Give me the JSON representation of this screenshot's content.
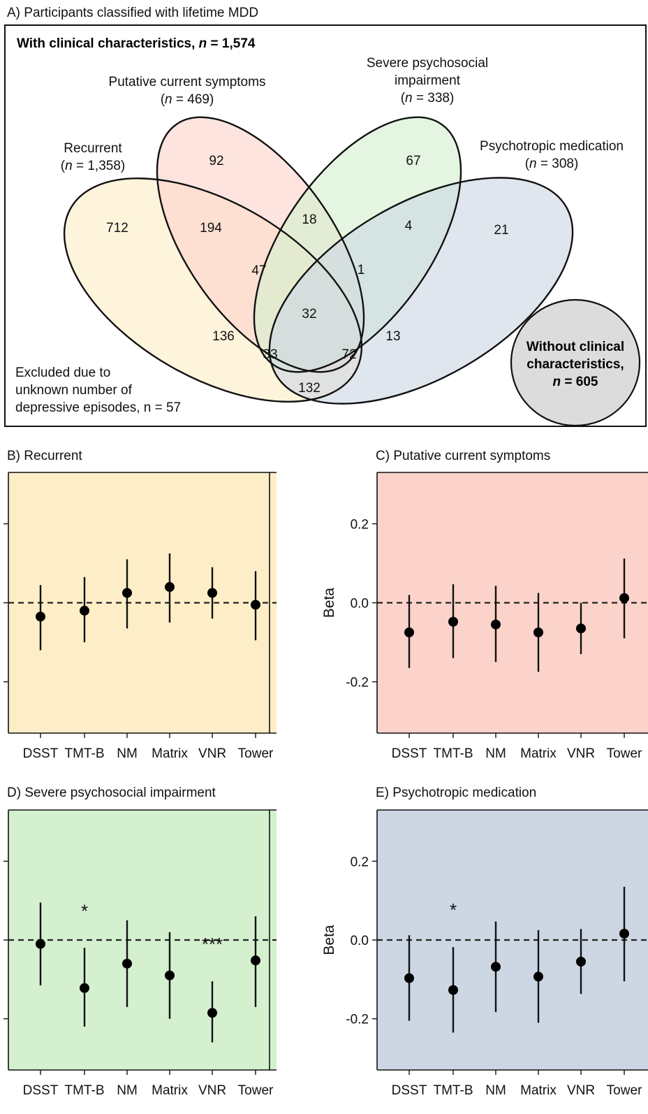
{
  "panel_a": {
    "title": "A)  Participants classified with lifetime MDD",
    "header_prefix": "With clinical characteristics, ",
    "header_n": "n",
    "header_suffix": " = 1,574",
    "sets": [
      {
        "line1": "Recurrent",
        "n": "1,358",
        "color": "#fdeec7"
      },
      {
        "line1": "Putative current symptoms",
        "n": "469",
        "color": "#fbd3cb"
      },
      {
        "line0": "Severe psychosocial",
        "line1": "impairment",
        "n": "338",
        "color": "#d4f0cf"
      },
      {
        "line1": "Psychotropic medication",
        "n": "308",
        "color": "#cdd7e3"
      }
    ],
    "region_counts": [
      "712",
      "92",
      "67",
      "21",
      "194",
      "18",
      "4",
      "47",
      "1",
      "32",
      "136",
      "13",
      "33",
      "72",
      "132"
    ],
    "excluded_text": [
      "Excluded due to",
      "unknown number of",
      "depressive episodes, n = 57"
    ],
    "without": {
      "line1": "Without clinical",
      "line2": "characteristics,",
      "n_prefix": "n",
      "n_value": " = 605"
    }
  },
  "chart_data": [
    {
      "type": "scatter",
      "title": "B) Recurrent",
      "categories": [
        "DSST",
        "TMT-B",
        "NM",
        "Matrix",
        "VNR",
        "Tower"
      ],
      "values": [
        -0.035,
        -0.02,
        0.025,
        0.04,
        0.025,
        -0.005
      ],
      "ci_low": [
        -0.12,
        -0.1,
        -0.065,
        -0.05,
        -0.04,
        -0.095
      ],
      "ci_high": [
        0.045,
        0.065,
        0.11,
        0.125,
        0.09,
        0.08
      ],
      "significance": [
        "",
        "",
        "",
        "",
        "",
        ""
      ],
      "ylabel": "",
      "yticks": [],
      "ylim": [
        -0.33,
        0.33
      ],
      "reference_line": 0,
      "background": "#fdeec7"
    },
    {
      "type": "scatter",
      "title": "C) Putative current symptoms",
      "categories": [
        "DSST",
        "TMT-B",
        "NM",
        "Matrix",
        "VNR",
        "Tower"
      ],
      "values": [
        -0.075,
        -0.048,
        -0.055,
        -0.075,
        -0.065,
        0.012
      ],
      "ci_low": [
        -0.165,
        -0.14,
        -0.15,
        -0.175,
        -0.13,
        -0.09
      ],
      "ci_high": [
        0.02,
        0.047,
        0.043,
        0.025,
        0.0,
        0.112
      ],
      "significance": [
        "",
        "",
        "",
        "",
        "",
        ""
      ],
      "ylabel": "Beta",
      "yticks": [
        "0.2",
        "0.0",
        "-0.2"
      ],
      "ylim": [
        -0.33,
        0.33
      ],
      "reference_line": 0,
      "background": "#fbd3cb"
    },
    {
      "type": "scatter",
      "title": "D) Severe psychosocial impairment",
      "categories": [
        "DSST",
        "TMT-B",
        "NM",
        "Matrix",
        "VNR",
        "Tower"
      ],
      "values": [
        -0.01,
        -0.122,
        -0.06,
        -0.09,
        -0.185,
        -0.052
      ],
      "ci_low": [
        -0.115,
        -0.22,
        -0.17,
        -0.2,
        -0.26,
        -0.17
      ],
      "ci_high": [
        0.095,
        -0.02,
        0.05,
        0.02,
        -0.105,
        0.06
      ],
      "significance": [
        "",
        "*",
        "",
        "",
        "***",
        ""
      ],
      "ylabel": "",
      "yticks": [],
      "ylim": [
        -0.33,
        0.33
      ],
      "reference_line": 0,
      "background": "#d4f0cf"
    },
    {
      "type": "scatter",
      "title": "E) Psychotropic medication",
      "categories": [
        "DSST",
        "TMT-B",
        "NM",
        "Matrix",
        "VNR",
        "Tower"
      ],
      "values": [
        -0.097,
        -0.127,
        -0.068,
        -0.093,
        -0.055,
        0.016
      ],
      "ci_low": [
        -0.205,
        -0.235,
        -0.183,
        -0.21,
        -0.137,
        -0.105
      ],
      "ci_high": [
        0.012,
        -0.018,
        0.047,
        0.025,
        0.028,
        0.135
      ],
      "significance": [
        "",
        "*",
        "",
        "",
        "",
        ""
      ],
      "ylabel": "Beta",
      "yticks": [
        "0.2",
        "0.0",
        "-0.2"
      ],
      "ylim": [
        -0.33,
        0.33
      ],
      "reference_line": 0,
      "background": "#cdd7e3"
    }
  ]
}
